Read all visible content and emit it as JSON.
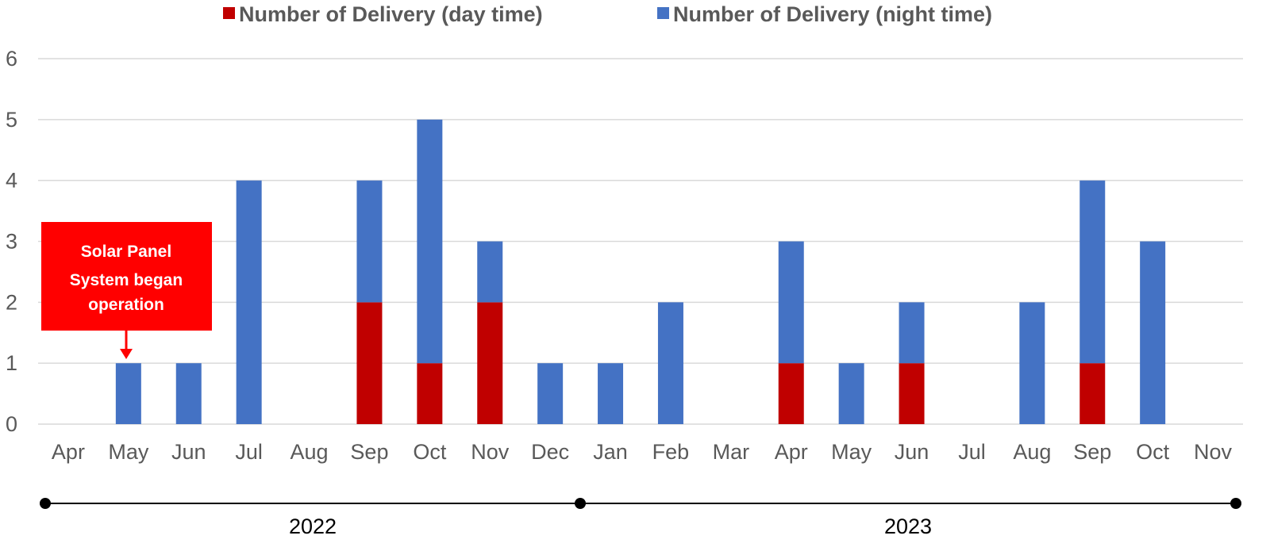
{
  "chart_data": {
    "type": "bar",
    "stacked": true,
    "categories": [
      "Apr",
      "May",
      "Jun",
      "Jul",
      "Aug",
      "Sep",
      "Oct",
      "Nov",
      "Dec",
      "Jan",
      "Feb",
      "Mar",
      "Apr",
      "May",
      "Jun",
      "Jul",
      "Aug",
      "Sep",
      "Oct",
      "Nov"
    ],
    "series": [
      {
        "name": "Number of Delivery (day time)",
        "color": "#c00000",
        "values": [
          0,
          0,
          0,
          0,
          0,
          2,
          1,
          2,
          0,
          0,
          0,
          0,
          1,
          0,
          1,
          0,
          0,
          1,
          0,
          0
        ]
      },
      {
        "name": "Number of Delivery (night time)",
        "color": "#4472c4",
        "values": [
          0,
          1,
          1,
          4,
          0,
          2,
          4,
          1,
          1,
          1,
          2,
          0,
          2,
          1,
          1,
          0,
          2,
          3,
          3,
          0
        ]
      }
    ],
    "ylim": [
      0,
      6
    ],
    "yticks": [
      "0",
      "1",
      "2",
      "3",
      "4",
      "5",
      "6"
    ],
    "grid": true,
    "legend_position": "top",
    "year_groups": [
      {
        "label": "2022",
        "start_index": 0,
        "end_index": 8
      },
      {
        "label": "2023",
        "start_index": 9,
        "end_index": 19
      }
    ],
    "annotation": {
      "lines": [
        "Solar Panel",
        "System began",
        "operation"
      ],
      "target_category_index": 1,
      "color": "#ff0000"
    }
  }
}
